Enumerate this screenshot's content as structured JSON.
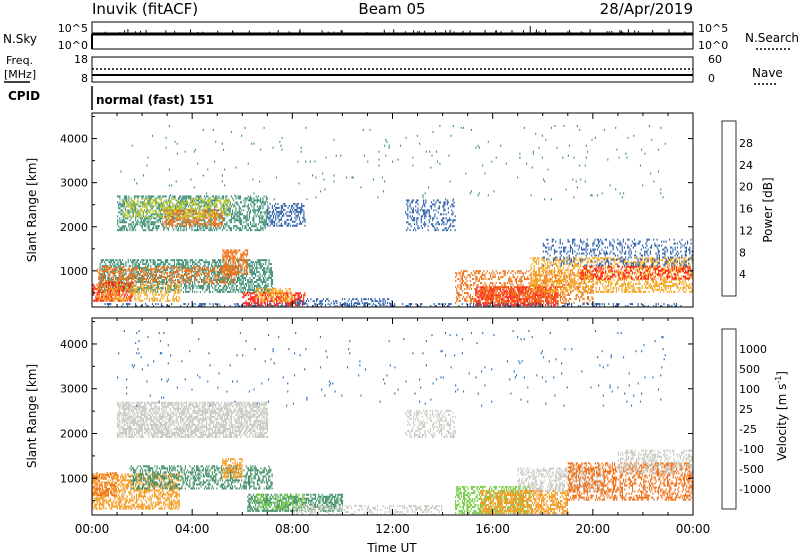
{
  "header": {
    "station": "Inuvik (fitACF)",
    "beam": "Beam 05",
    "date": "28/Apr/2019"
  },
  "nsky_panel": {
    "left_label": "N.Sky",
    "right_label": "N.Search",
    "left_ticks": [
      "10^5",
      "10^0"
    ],
    "right_ticks": [
      "10^5",
      "10^0"
    ]
  },
  "freq_panel": {
    "left_label": "Freq.",
    "left_unit": "[MHz]",
    "right_label": "Nave",
    "left_ticks": [
      "18",
      "8"
    ],
    "right_ticks": [
      "60",
      "0"
    ]
  },
  "cpid_panel": {
    "label": "CPID",
    "value": "normal (fast) 151"
  },
  "chart_data": [
    {
      "type": "heatmap",
      "name": "power",
      "ylabel": "Slant Range [km]",
      "colorbar_label": "Power [dB]",
      "ylim": [
        180,
        4580
      ],
      "yticks": [
        {
          "value": 1000,
          "label": "1000"
        },
        {
          "value": 2000,
          "label": "2000"
        },
        {
          "value": 3000,
          "label": "3000"
        },
        {
          "value": 4000,
          "label": "4000"
        }
      ],
      "colorbar": {
        "colors": [
          "#2a10f0",
          "#2d5fa9",
          "#3f8f75",
          "#57b84e",
          "#c6cc27",
          "#f5a51c",
          "#f07218",
          "#ff1f0a"
        ],
        "ticks": [
          "4",
          "8",
          "12",
          "16",
          "20",
          "24",
          "28"
        ]
      },
      "regions": [
        {
          "t0": 0.3,
          "t1": 7.2,
          "r0": 500,
          "r1": 1250,
          "color": "#3f8f75",
          "density": 0.55
        },
        {
          "t0": 0.2,
          "t1": 5.8,
          "r0": 700,
          "r1": 1100,
          "color": "#f07218",
          "density": 0.45
        },
        {
          "t0": 0.0,
          "t1": 1.6,
          "r0": 300,
          "r1": 750,
          "color": "#ff1f0a",
          "density": 0.6
        },
        {
          "t0": 0.2,
          "t1": 3.5,
          "r0": 300,
          "r1": 700,
          "color": "#f5a51c",
          "density": 0.4
        },
        {
          "t0": 5.2,
          "t1": 6.2,
          "r0": 900,
          "r1": 1450,
          "color": "#f07218",
          "density": 0.6
        },
        {
          "t0": 6.0,
          "t1": 8.5,
          "r0": 200,
          "r1": 500,
          "color": "#ff1f0a",
          "density": 0.6
        },
        {
          "t0": 6.5,
          "t1": 8.0,
          "r0": 300,
          "r1": 600,
          "color": "#f5a51c",
          "density": 0.5
        },
        {
          "t0": 1.0,
          "t1": 7.0,
          "r0": 1900,
          "r1": 2700,
          "color": "#3f8f75",
          "density": 0.5
        },
        {
          "t0": 2.8,
          "t1": 5.2,
          "r0": 2000,
          "r1": 2400,
          "color": "#f07218",
          "density": 0.55
        },
        {
          "t0": 1.2,
          "t1": 5.5,
          "r0": 2200,
          "r1": 2650,
          "color": "#c6cc27",
          "density": 0.35
        },
        {
          "t0": 7.0,
          "t1": 8.5,
          "r0": 2000,
          "r1": 2500,
          "color": "#2d5fa9",
          "density": 0.45
        },
        {
          "t0": 12.5,
          "t1": 14.5,
          "r0": 1900,
          "r1": 2600,
          "color": "#2d5fa9",
          "density": 0.3
        },
        {
          "t0": 8.0,
          "t1": 12.0,
          "r0": 200,
          "r1": 350,
          "color": "#2d5fa9",
          "density": 0.3
        },
        {
          "t0": 15.3,
          "t1": 18.6,
          "r0": 200,
          "r1": 650,
          "color": "#ff1f0a",
          "density": 0.7
        },
        {
          "t0": 14.5,
          "t1": 20.0,
          "r0": 250,
          "r1": 1000,
          "color": "#f07218",
          "density": 0.4
        },
        {
          "t0": 17.5,
          "t1": 24.0,
          "r0": 500,
          "r1": 1300,
          "color": "#f5a51c",
          "density": 0.45
        },
        {
          "t0": 19.5,
          "t1": 24.0,
          "r0": 800,
          "r1": 1100,
          "color": "#ff1f0a",
          "density": 0.35
        },
        {
          "t0": 18.0,
          "t1": 24.0,
          "r0": 1100,
          "r1": 1700,
          "color": "#2d5fa9",
          "density": 0.25
        },
        {
          "t0": 0.5,
          "t1": 23.5,
          "r0": 180,
          "r1": 260,
          "color": "#2d5fa9",
          "density": 0.25
        },
        {
          "t0": 1.0,
          "t1": 23.0,
          "r0": 2600,
          "r1": 4300,
          "color": "#3f8f75",
          "density": 0.012
        }
      ]
    },
    {
      "type": "heatmap",
      "name": "velocity",
      "xlabel": "Time UT",
      "ylabel": "Slant Range [km]",
      "colorbar_label": "Velocity [m s",
      "colorbar_label_sup": "-1",
      "colorbar_label_end": "]",
      "xlim": [
        0,
        24
      ],
      "ylim": [
        180,
        4580
      ],
      "xticks": [
        {
          "value": 0,
          "label": "00:00"
        },
        {
          "value": 4,
          "label": "04:00"
        },
        {
          "value": 8,
          "label": "08:00"
        },
        {
          "value": 12,
          "label": "12:00"
        },
        {
          "value": 16,
          "label": "16:00"
        },
        {
          "value": 20,
          "label": "20:00"
        },
        {
          "value": 24,
          "label": "00:00"
        }
      ],
      "yticks": [
        {
          "value": 1000,
          "label": "1000"
        },
        {
          "value": 2000,
          "label": "2000"
        },
        {
          "value": 3000,
          "label": "3000"
        },
        {
          "value": 4000,
          "label": "4000"
        }
      ],
      "colorbar": {
        "colors": [
          "#ff1f0a",
          "#f06e14",
          "#f59a20",
          "#f2c12a",
          "#c8c8c0",
          "#76cc45",
          "#3f8f66",
          "#2a70b8",
          "#1f38d8"
        ],
        "ticks": [
          "-1000",
          "-500",
          "-100",
          "-25",
          "25",
          "100",
          "500",
          "1000"
        ]
      },
      "regions": [
        {
          "t0": 0.0,
          "t1": 3.5,
          "r0": 300,
          "r1": 1100,
          "color": "#f59a20",
          "density": 0.55
        },
        {
          "t0": 0.0,
          "t1": 1.0,
          "r0": 600,
          "r1": 1100,
          "color": "#f06e14",
          "density": 0.35
        },
        {
          "t0": 1.5,
          "t1": 7.2,
          "r0": 750,
          "r1": 1250,
          "color": "#3f8f66",
          "density": 0.45
        },
        {
          "t0": 5.2,
          "t1": 6.0,
          "r0": 1000,
          "r1": 1450,
          "color": "#f59a20",
          "density": 0.6
        },
        {
          "t0": 6.2,
          "t1": 10.0,
          "r0": 250,
          "r1": 650,
          "color": "#3f8f66",
          "density": 0.55
        },
        {
          "t0": 6.5,
          "t1": 8.5,
          "r0": 300,
          "r1": 650,
          "color": "#76cc45",
          "density": 0.35
        },
        {
          "t0": 1.0,
          "t1": 7.0,
          "r0": 1900,
          "r1": 2700,
          "color": "#c8c8c0",
          "density": 0.65
        },
        {
          "t0": 12.5,
          "t1": 14.5,
          "r0": 1900,
          "r1": 2500,
          "color": "#c8c8c0",
          "density": 0.35
        },
        {
          "t0": 8.0,
          "t1": 14.0,
          "r0": 180,
          "r1": 400,
          "color": "#c8c8c0",
          "density": 0.35
        },
        {
          "t0": 14.5,
          "t1": 17.5,
          "r0": 200,
          "r1": 800,
          "color": "#76cc45",
          "density": 0.5
        },
        {
          "t0": 15.5,
          "t1": 19.0,
          "r0": 200,
          "r1": 700,
          "color": "#f59a20",
          "density": 0.6
        },
        {
          "t0": 17.0,
          "t1": 20.5,
          "r0": 700,
          "r1": 1200,
          "color": "#c8c8c0",
          "density": 0.45
        },
        {
          "t0": 19.0,
          "t1": 24.0,
          "r0": 500,
          "r1": 1350,
          "color": "#f06e14",
          "density": 0.45
        },
        {
          "t0": 21.0,
          "t1": 24.0,
          "r0": 1100,
          "r1": 1600,
          "color": "#c8c8c0",
          "density": 0.35
        },
        {
          "t0": 1.0,
          "t1": 23.0,
          "r0": 2600,
          "r1": 4300,
          "color": "#2a70b8",
          "density": 0.012
        }
      ]
    }
  ]
}
